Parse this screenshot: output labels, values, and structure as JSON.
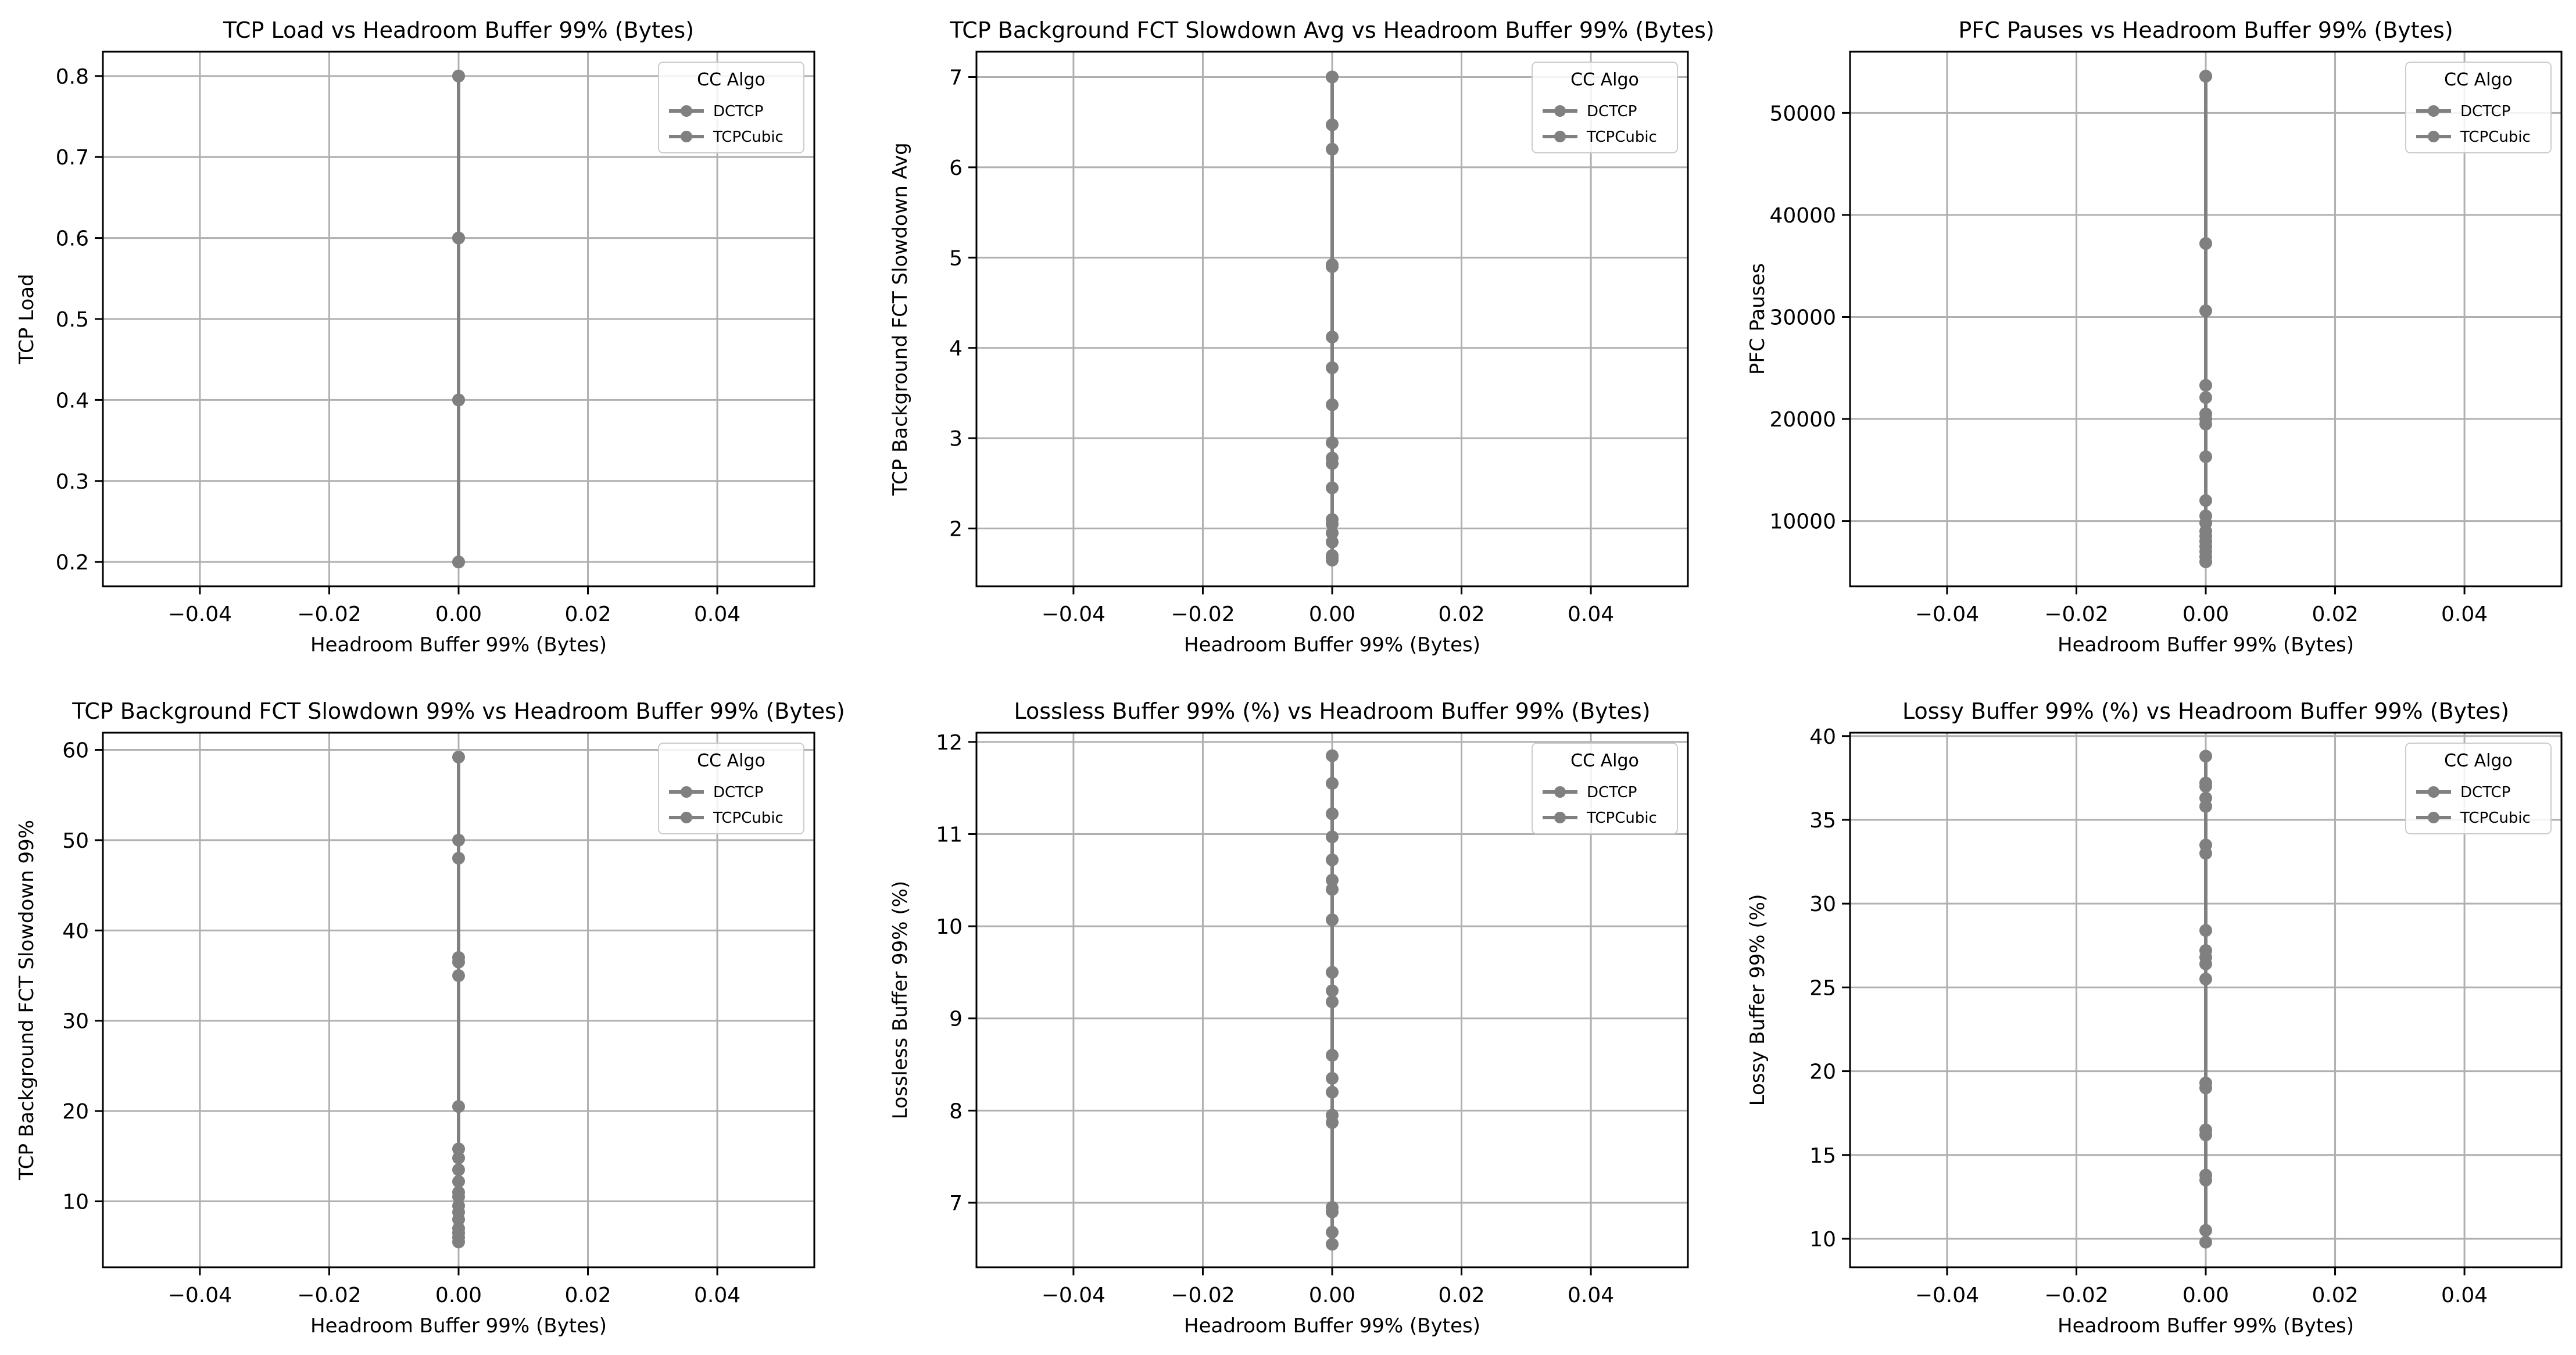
{
  "figure": {
    "legend_title": "CC Algo",
    "legend_entries": [
      "DCTCP",
      "TCPCubic"
    ],
    "line_color": "#808080",
    "grid_color": "#b0b0b0"
  },
  "chart_data": [
    {
      "type": "scatter",
      "title": "TCP Load vs Headroom Buffer 99% (Bytes)",
      "xlabel": "Headroom Buffer 99% (Bytes)",
      "ylabel": "TCP Load",
      "xlim": [
        -0.055,
        0.055
      ],
      "ylim": [
        0.17,
        0.83
      ],
      "x_ticks": [
        -0.04,
        -0.02,
        0.0,
        0.02,
        0.04
      ],
      "x_tick_labels": [
        "−0.04",
        "−0.02",
        "0.00",
        "0.02",
        "0.04"
      ],
      "y_ticks": [
        0.2,
        0.3,
        0.4,
        0.5,
        0.6,
        0.7,
        0.8
      ],
      "y_tick_labels": [
        "0.2",
        "0.3",
        "0.4",
        "0.5",
        "0.6",
        "0.7",
        "0.8"
      ],
      "grid": true,
      "legend": "top-right",
      "series": [
        {
          "name": "DCTCP",
          "x": [
            0,
            0,
            0,
            0
          ],
          "y": [
            0.2,
            0.4,
            0.6,
            0.8
          ]
        },
        {
          "name": "TCPCubic",
          "x": [
            0,
            0,
            0,
            0
          ],
          "y": [
            0.2,
            0.4,
            0.6,
            0.8
          ]
        }
      ]
    },
    {
      "type": "scatter",
      "title": "TCP Background FCT Slowdown Avg vs Headroom Buffer 99% (Bytes)",
      "xlabel": "Headroom Buffer 99% (Bytes)",
      "ylabel": "TCP Background FCT Slowdown Avg",
      "xlim": [
        -0.055,
        0.055
      ],
      "ylim": [
        1.36,
        7.28
      ],
      "x_ticks": [
        -0.04,
        -0.02,
        0.0,
        0.02,
        0.04
      ],
      "x_tick_labels": [
        "−0.04",
        "−0.02",
        "0.00",
        "0.02",
        "0.04"
      ],
      "y_ticks": [
        2,
        3,
        4,
        5,
        6,
        7
      ],
      "y_tick_labels": [
        "2",
        "3",
        "4",
        "5",
        "6",
        "7"
      ],
      "grid": true,
      "legend": "top-right",
      "series": [
        {
          "name": "DCTCP",
          "x": [
            0,
            0,
            0,
            0,
            0,
            0,
            0,
            0,
            0,
            0
          ],
          "y": [
            1.65,
            1.85,
            2.05,
            2.45,
            2.72,
            2.95,
            3.78,
            4.9,
            6.2,
            7.0
          ]
        },
        {
          "name": "TCPCubic",
          "x": [
            0,
            0,
            0,
            0,
            0,
            0,
            0,
            0,
            0,
            0
          ],
          "y": [
            1.7,
            1.95,
            2.1,
            2.78,
            3.37,
            4.12,
            4.92,
            6.47,
            7.0,
            1.68
          ]
        }
      ]
    },
    {
      "type": "scatter",
      "title": "PFC Pauses vs Headroom Buffer 99% (Bytes)",
      "xlabel": "Headroom Buffer 99% (Bytes)",
      "ylabel": "PFC Pauses",
      "xlim": [
        -0.055,
        0.055
      ],
      "ylim": [
        3600,
        56000
      ],
      "x_ticks": [
        -0.04,
        -0.02,
        0.0,
        0.02,
        0.04
      ],
      "x_tick_labels": [
        "−0.04",
        "−0.02",
        "0.00",
        "0.02",
        "0.04"
      ],
      "y_ticks": [
        10000,
        20000,
        30000,
        40000,
        50000
      ],
      "y_tick_labels": [
        "10000",
        "20000",
        "30000",
        "40000",
        "50000"
      ],
      "grid": true,
      "legend": "top-right",
      "series": [
        {
          "name": "DCTCP",
          "x": [
            0,
            0,
            0,
            0,
            0,
            0,
            0,
            0,
            0,
            0
          ],
          "y": [
            6000,
            7000,
            8000,
            9000,
            10500,
            16300,
            20000,
            22100,
            30600,
            53600
          ]
        },
        {
          "name": "TCPCubic",
          "x": [
            0,
            0,
            0,
            0,
            0,
            0,
            0,
            0,
            0,
            0
          ],
          "y": [
            6500,
            7500,
            8500,
            9800,
            12000,
            19500,
            20500,
            23300,
            37200,
            53600
          ]
        }
      ]
    },
    {
      "type": "scatter",
      "title": "TCP Background FCT Slowdown 99% vs Headroom Buffer 99% (Bytes)",
      "xlabel": "Headroom Buffer 99% (Bytes)",
      "ylabel": "TCP Background FCT Slowdown 99%",
      "xlim": [
        -0.055,
        0.055
      ],
      "ylim": [
        2.7,
        61.9
      ],
      "x_ticks": [
        -0.04,
        -0.02,
        0.0,
        0.02,
        0.04
      ],
      "x_tick_labels": [
        "−0.04",
        "−0.02",
        "0.00",
        "0.02",
        "0.04"
      ],
      "y_ticks": [
        10,
        20,
        30,
        40,
        50,
        60
      ],
      "y_tick_labels": [
        "10",
        "20",
        "30",
        "40",
        "50",
        "60"
      ],
      "grid": true,
      "legend": "top-right",
      "series": [
        {
          "name": "DCTCP",
          "x": [
            0,
            0,
            0,
            0,
            0,
            0,
            0,
            0,
            0,
            0
          ],
          "y": [
            5.5,
            6.5,
            8.0,
            9.5,
            11.0,
            13.5,
            15.8,
            35.0,
            37.0,
            59.2
          ]
        },
        {
          "name": "TCPCubic",
          "x": [
            0,
            0,
            0,
            0,
            0,
            0,
            0,
            0,
            0,
            0
          ],
          "y": [
            6.0,
            7.0,
            8.8,
            10.5,
            12.2,
            14.8,
            20.5,
            36.5,
            48.0,
            50.0
          ]
        }
      ]
    },
    {
      "type": "scatter",
      "title": "Lossless Buffer 99% (%) vs Headroom Buffer 99% (Bytes)",
      "xlabel": "Headroom Buffer 99% (Bytes)",
      "ylabel": "Lossless Buffer 99% (%)",
      "xlim": [
        -0.055,
        0.055
      ],
      "ylim": [
        6.3,
        12.1
      ],
      "x_ticks": [
        -0.04,
        -0.02,
        0.0,
        0.02,
        0.04
      ],
      "x_tick_labels": [
        "−0.04",
        "−0.02",
        "0.00",
        "0.02",
        "0.04"
      ],
      "y_ticks": [
        7,
        8,
        9,
        10,
        11,
        12
      ],
      "y_tick_labels": [
        "7",
        "8",
        "9",
        "10",
        "11",
        "12"
      ],
      "grid": true,
      "legend": "top-right",
      "series": [
        {
          "name": "DCTCP",
          "x": [
            0,
            0,
            0,
            0,
            0,
            0,
            0,
            0,
            0,
            0
          ],
          "y": [
            6.55,
            6.9,
            7.87,
            8.2,
            8.6,
            9.3,
            10.07,
            10.5,
            10.97,
            11.55
          ]
        },
        {
          "name": "TCPCubic",
          "x": [
            0,
            0,
            0,
            0,
            0,
            0,
            0,
            0,
            0,
            0
          ],
          "y": [
            6.68,
            6.95,
            7.95,
            8.35,
            9.18,
            9.5,
            10.4,
            10.72,
            11.22,
            11.85
          ]
        }
      ]
    },
    {
      "type": "scatter",
      "title": "Lossy Buffer 99% (%) vs Headroom Buffer 99% (Bytes)",
      "xlabel": "Headroom Buffer 99% (Bytes)",
      "ylabel": "Lossy Buffer 99% (%)",
      "xlim": [
        -0.055,
        0.055
      ],
      "ylim": [
        8.3,
        40.2
      ],
      "x_ticks": [
        -0.04,
        -0.02,
        0.0,
        0.02,
        0.04
      ],
      "x_tick_labels": [
        "−0.04",
        "−0.02",
        "0.00",
        "0.02",
        "0.04"
      ],
      "y_ticks": [
        10,
        15,
        20,
        25,
        30,
        35,
        40
      ],
      "y_tick_labels": [
        "10",
        "15",
        "20",
        "25",
        "30",
        "35",
        "40"
      ],
      "grid": true,
      "legend": "top-right",
      "series": [
        {
          "name": "DCTCP",
          "x": [
            0,
            0,
            0,
            0,
            0,
            0,
            0,
            0,
            0,
            0
          ],
          "y": [
            9.8,
            13.5,
            16.2,
            19.0,
            25.5,
            26.8,
            28.4,
            33.0,
            35.8,
            37.2
          ]
        },
        {
          "name": "TCPCubic",
          "x": [
            0,
            0,
            0,
            0,
            0,
            0,
            0,
            0,
            0,
            0
          ],
          "y": [
            10.5,
            13.8,
            16.5,
            19.3,
            26.4,
            27.2,
            33.5,
            36.3,
            37.0,
            38.8
          ]
        }
      ]
    }
  ]
}
